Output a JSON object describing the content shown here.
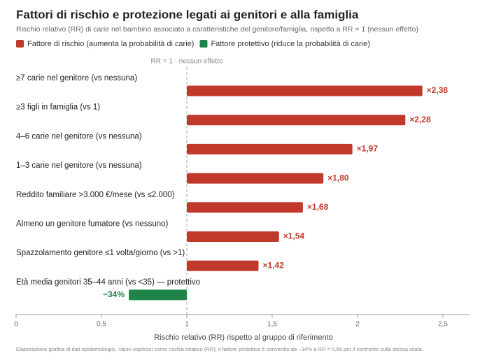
{
  "chart_data": {
    "type": "bar",
    "orientation": "horizontal",
    "title": "Fattori di rischio e protezione legati ai genitori e alla famiglia",
    "subtitle": "Rischio relativo (RR) di carie nel bambino associato a caratteristiche del genitore/famiglia, rispetto a RR = 1 (nessun effetto)",
    "categories": [
      "≥7 carie nel genitore (vs nessuna)",
      "≥3 figli in famiglia (vs 1)",
      "4–6 carie nel genitore (vs nessuna)",
      "1–3 carie nel genitore (vs nessuna)",
      "Reddito familiare >3.000 €/mese (vs ≤2.000)",
      "Almeno un genitore fumatore (vs nessuno)",
      "Spazzolamento genitore ≤1 volta/giorno (vs >1)",
      "Età media genitori 35–44 anni (vs <35) — protettivo"
    ],
    "series": [
      {
        "name": "Fattore di rischio (aumenta la probabilità di carie)",
        "color": "#c0392b",
        "values": [
          2.38,
          2.28,
          1.97,
          1.8,
          1.68,
          1.54,
          1.42,
          null
        ],
        "value_labels": [
          "×2,38",
          "×2,28",
          "×1,97",
          "×1,80",
          "×1,68",
          "×1,54",
          "×1,42",
          null
        ]
      },
      {
        "name": "Fattore protettivo (riduce la probabilità di carie)",
        "color": "#1e8449",
        "values": [
          null,
          null,
          null,
          null,
          null,
          null,
          null,
          0.66
        ],
        "value_labels": [
          null,
          null,
          null,
          null,
          null,
          null,
          null,
          "−34%"
        ]
      }
    ],
    "reference_line": {
      "value": 1,
      "label": "RR = 1 · nessun effetto"
    },
    "xlim": [
      0,
      2.66
    ],
    "xticks": [
      0,
      {
        "value": 0.5,
        "label": "0,5"
      },
      1,
      {
        "value": 1.5,
        "label": "1,5"
      },
      2,
      {
        "value": 2.5,
        "label": "2,5"
      }
    ],
    "xlabel": "Rischio relativo (RR) rispetto al gruppo di riferimento",
    "footnote": "Elaborazione grafica di dati epidemiologici. Valori espressi come rischio relativo (RR); il fattore protettivo è convertito da −34% a RR = 0,66 per il confronto sulla stessa scala."
  }
}
